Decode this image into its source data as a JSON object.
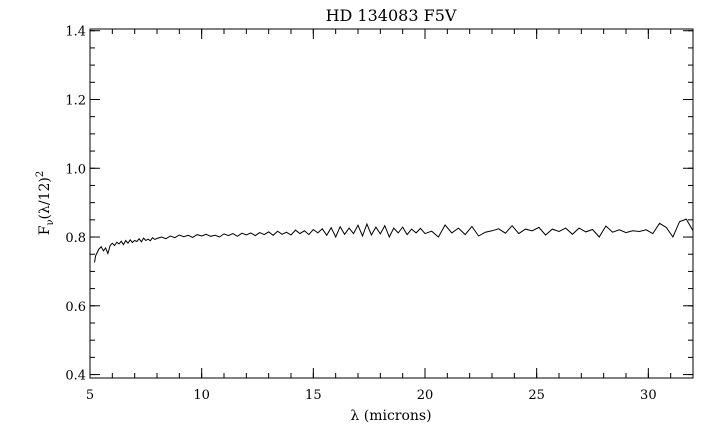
{
  "chart_data": {
    "type": "line",
    "title": "HD 134083 F5V",
    "xlabel": "λ (microns)",
    "ylabel_main": "F",
    "ylabel_sub": "ν",
    "ylabel_tail": "(λ/12)",
    "ylabel_sup": "2",
    "xlim": [
      5,
      32
    ],
    "ylim": [
      0.39,
      1.405
    ],
    "x_ticks": [
      5,
      10,
      15,
      20,
      25,
      30
    ],
    "x_tick_labels": [
      "5",
      "10",
      "15",
      "20",
      "25",
      "30"
    ],
    "x_minor_step": 1,
    "y_ticks": [
      0.4,
      0.6,
      0.8,
      1.0,
      1.2,
      1.4
    ],
    "y_tick_labels": [
      "0.4",
      "0.6",
      "0.8",
      "1.0",
      "1.2",
      "1.4"
    ],
    "y_minor_step": 0.05,
    "grid": false,
    "series": [
      {
        "color": "#000000",
        "x": [
          5.2,
          5.25,
          5.3,
          5.4,
          5.5,
          5.6,
          5.7,
          5.8,
          5.9,
          6.0,
          6.1,
          6.2,
          6.3,
          6.4,
          6.5,
          6.6,
          6.7,
          6.8,
          6.9,
          7.0,
          7.1,
          7.2,
          7.3,
          7.4,
          7.5,
          7.6,
          7.7,
          7.8,
          7.9,
          8.0,
          8.2,
          8.4,
          8.6,
          8.8,
          9.0,
          9.2,
          9.4,
          9.6,
          9.8,
          10.0,
          10.2,
          10.4,
          10.6,
          10.8,
          11.0,
          11.2,
          11.4,
          11.6,
          11.8,
          12.0,
          12.2,
          12.4,
          12.6,
          12.8,
          13.0,
          13.2,
          13.4,
          13.6,
          13.8,
          14.0,
          14.2,
          14.4,
          14.6,
          14.8,
          15.0,
          15.2,
          15.4,
          15.6,
          15.8,
          16.0,
          16.2,
          16.4,
          16.6,
          16.8,
          17.0,
          17.2,
          17.4,
          17.6,
          17.8,
          18.0,
          18.2,
          18.4,
          18.6,
          18.8,
          19.0,
          19.2,
          19.4,
          19.6,
          19.8,
          20.0,
          20.3,
          20.6,
          20.9,
          21.2,
          21.5,
          21.8,
          22.1,
          22.4,
          22.7,
          23.0,
          23.3,
          23.6,
          23.9,
          24.2,
          24.5,
          24.8,
          25.1,
          25.4,
          25.7,
          26.0,
          26.3,
          26.6,
          26.9,
          27.2,
          27.5,
          27.8,
          28.1,
          28.4,
          28.7,
          29.0,
          29.3,
          29.6,
          29.9,
          30.2,
          30.5,
          30.8,
          31.1,
          31.4,
          31.7,
          32.0
        ],
        "y": [
          0.726,
          0.745,
          0.752,
          0.765,
          0.772,
          0.76,
          0.768,
          0.752,
          0.775,
          0.782,
          0.775,
          0.785,
          0.78,
          0.788,
          0.778,
          0.79,
          0.782,
          0.792,
          0.784,
          0.79,
          0.787,
          0.795,
          0.786,
          0.797,
          0.79,
          0.794,
          0.789,
          0.798,
          0.793,
          0.796,
          0.8,
          0.795,
          0.803,
          0.798,
          0.806,
          0.801,
          0.805,
          0.799,
          0.807,
          0.803,
          0.808,
          0.802,
          0.805,
          0.8,
          0.809,
          0.804,
          0.81,
          0.802,
          0.811,
          0.806,
          0.812,
          0.804,
          0.813,
          0.807,
          0.815,
          0.805,
          0.817,
          0.808,
          0.814,
          0.806,
          0.82,
          0.81,
          0.818,
          0.807,
          0.822,
          0.812,
          0.824,
          0.805,
          0.827,
          0.8,
          0.83,
          0.808,
          0.826,
          0.81,
          0.834,
          0.803,
          0.838,
          0.806,
          0.829,
          0.809,
          0.833,
          0.8,
          0.826,
          0.812,
          0.829,
          0.807,
          0.823,
          0.812,
          0.825,
          0.81,
          0.817,
          0.8,
          0.835,
          0.812,
          0.826,
          0.807,
          0.831,
          0.803,
          0.814,
          0.818,
          0.824,
          0.811,
          0.833,
          0.81,
          0.823,
          0.818,
          0.828,
          0.806,
          0.823,
          0.816,
          0.826,
          0.808,
          0.826,
          0.815,
          0.822,
          0.8,
          0.832,
          0.814,
          0.821,
          0.813,
          0.818,
          0.816,
          0.821,
          0.81,
          0.84,
          0.828,
          0.8,
          0.845,
          0.852,
          0.818
        ]
      }
    ]
  }
}
